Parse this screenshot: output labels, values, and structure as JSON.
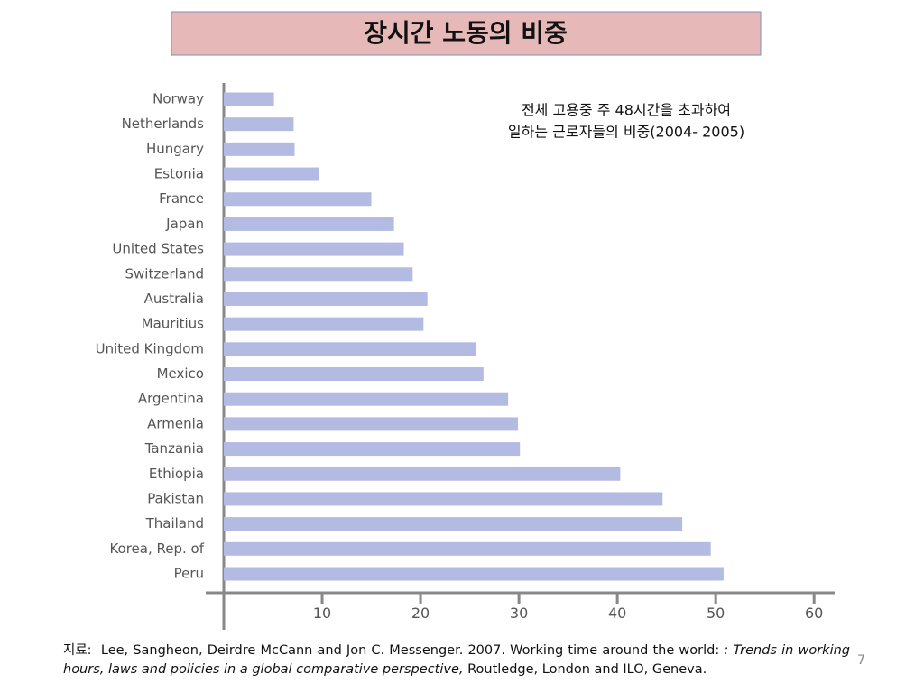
{
  "chart_data": {
    "type": "bar",
    "orientation": "horizontal",
    "title": "장시간 노동의 비중",
    "subtitle": [
      "전체 고용중 주 48시간을 초과하여",
      "일하는 근로자들의 비중(2004- 2005)"
    ],
    "categories": [
      "Norway",
      "Netherlands",
      "Hungary",
      "Estonia",
      "France",
      "Japan",
      "United States",
      "Switzerland",
      "Australia",
      "Mauritius",
      "United Kingdom",
      "Mexico",
      "Argentina",
      "Armenia",
      "Tanzania",
      "Ethiopia",
      "Pakistan",
      "Thailand",
      "Korea, Rep. of",
      "Peru"
    ],
    "values": [
      5.1,
      7.1,
      7.2,
      9.7,
      15.0,
      17.3,
      18.3,
      19.2,
      20.7,
      20.3,
      25.6,
      26.4,
      28.9,
      29.9,
      30.1,
      40.3,
      44.6,
      46.6,
      49.5,
      50.8
    ],
    "color": "#b3bbe3",
    "xlim": [
      0,
      62
    ],
    "xticks": [
      10,
      20,
      30,
      40,
      50,
      60
    ]
  },
  "source": {
    "label": "지료:",
    "text": "Lee, Sangheon, Deirdre McCann and Jon C. Messenger. 2007. Working time around the world:",
    "italic": ": Trends in working hours, laws and policies in a global comparative perspective,",
    "rest": "Routledge, London and ILO, Geneva."
  },
  "page_number": "7"
}
